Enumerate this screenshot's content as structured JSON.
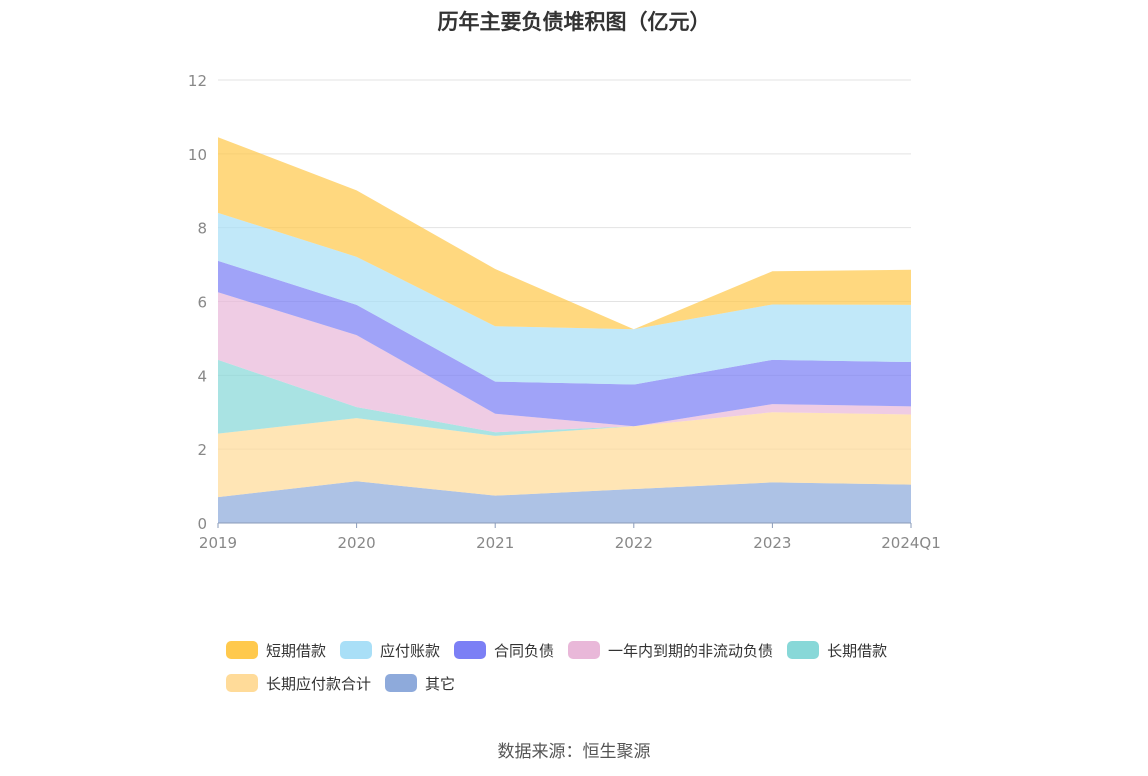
{
  "title": "历年主要负债堆积图（亿元）",
  "source": "数据来源：恒生聚源",
  "chart_data": {
    "type": "area",
    "stacked": true,
    "title": "历年主要负债堆积图（亿元）",
    "xlabel": "",
    "ylabel": "",
    "categories": [
      "2019",
      "2020",
      "2021",
      "2022",
      "2023",
      "2024Q1"
    ],
    "ylim": [
      0,
      12
    ],
    "yticks": [
      0,
      2,
      4,
      6,
      8,
      10,
      12
    ],
    "grid": true,
    "legend_position": "bottom",
    "series": [
      {
        "name": "其它",
        "color": "#8eaadb",
        "values": [
          0.7,
          1.13,
          0.74,
          0.92,
          1.1,
          1.04
        ]
      },
      {
        "name": "长期应付款合计",
        "color": "#ffdb99",
        "values": [
          1.72,
          1.71,
          1.62,
          1.7,
          1.9,
          1.9
        ]
      },
      {
        "name": "长期借款",
        "color": "#88d8d8",
        "values": [
          2.0,
          0.3,
          0.1,
          0.0,
          0.0,
          0.0
        ]
      },
      {
        "name": "一年内到期的非流动负债",
        "color": "#e9b8d9",
        "values": [
          1.83,
          1.95,
          0.5,
          0.0,
          0.22,
          0.22
        ]
      },
      {
        "name": "合同负债",
        "color": "#7b7ff5",
        "values": [
          0.85,
          0.82,
          0.87,
          1.13,
          1.2,
          1.2
        ]
      },
      {
        "name": "应付账款",
        "color": "#a9dff7",
        "values": [
          1.3,
          1.3,
          1.5,
          1.5,
          1.5,
          1.55
        ]
      },
      {
        "name": "短期借款",
        "color": "#ffc94d",
        "values": [
          2.05,
          1.8,
          1.55,
          0.0,
          0.9,
          0.95
        ]
      }
    ],
    "legend_order": [
      "短期借款",
      "应付账款",
      "合同负债",
      "一年内到期的非流动负债",
      "长期借款",
      "长期应付款合计",
      "其它"
    ]
  }
}
